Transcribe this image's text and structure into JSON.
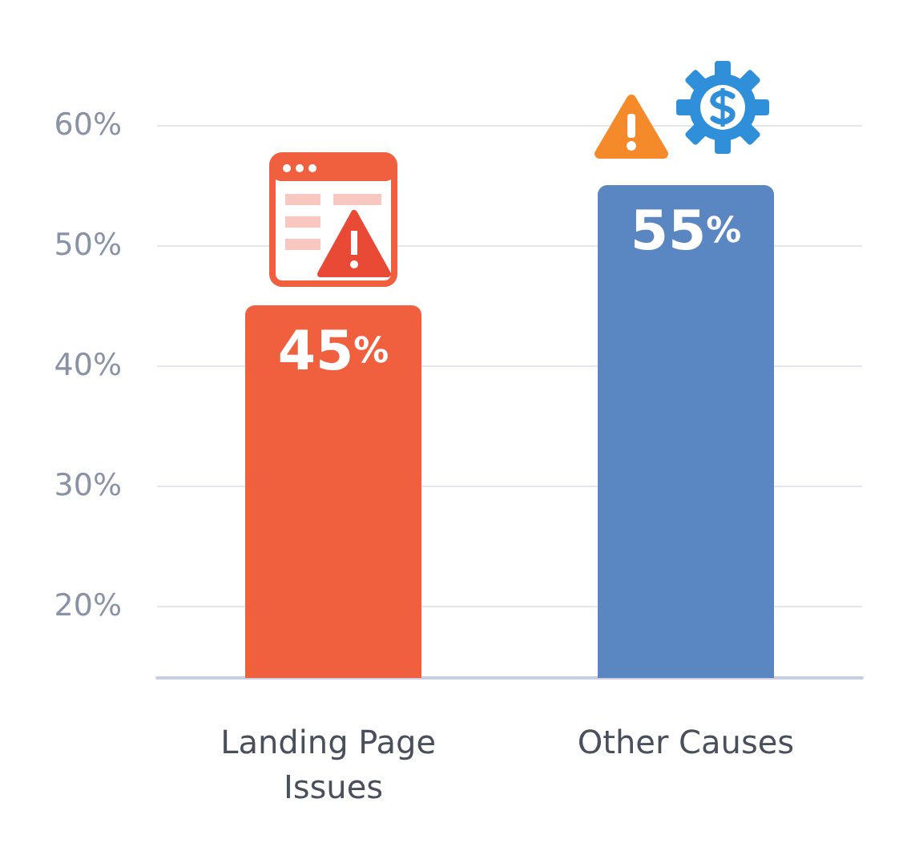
{
  "chart_data": {
    "type": "bar",
    "categories": [
      "Landing Page Issues",
      "Other Causes"
    ],
    "values": [
      45,
      55
    ],
    "colors": [
      "#f0603e",
      "#5a86c2"
    ],
    "value_labels": [
      "45%",
      "55%"
    ],
    "ylim": [
      14,
      62
    ],
    "yticks": [
      {
        "value": 20,
        "label": "20%"
      },
      {
        "value": 30,
        "label": "30%"
      },
      {
        "value": 40,
        "label": "40%"
      },
      {
        "value": 50,
        "label": "50%"
      },
      {
        "value": 60,
        "label": "60%"
      }
    ],
    "grid": "y"
  }
}
